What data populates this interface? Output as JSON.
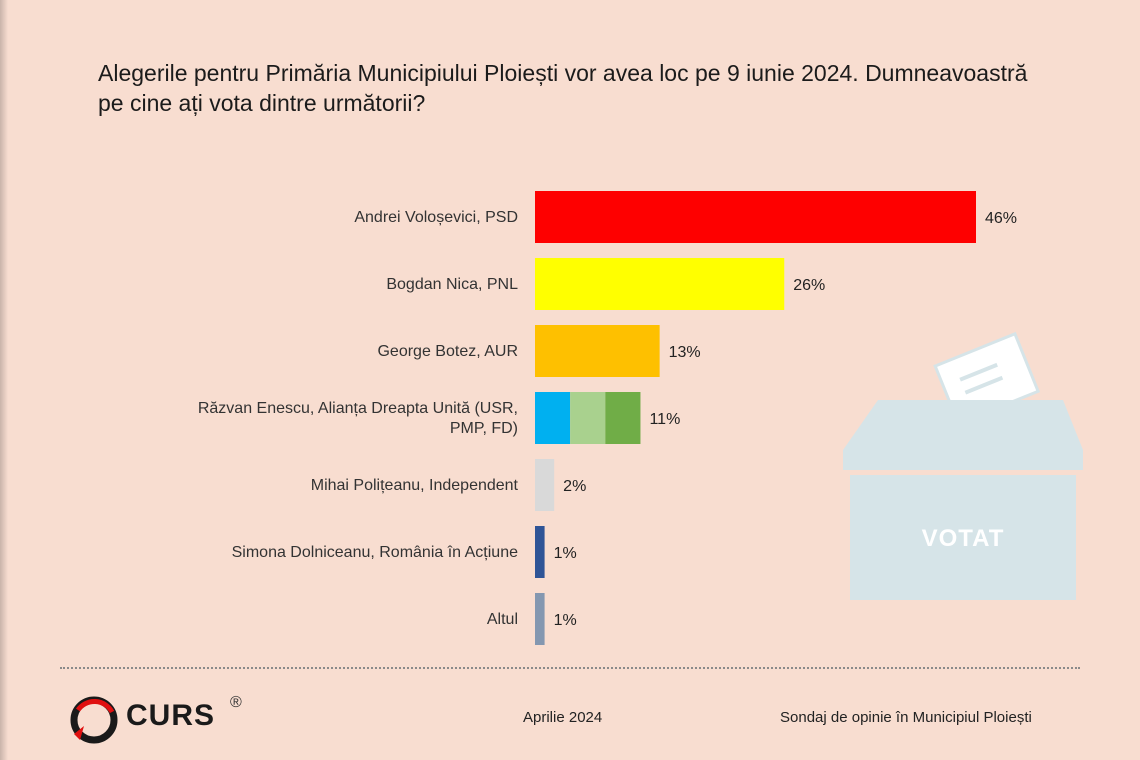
{
  "title": "Alegerile pentru Primăria Municipiului Ploiești vor avea loc pe 9 iunie 2024. Dumneavoastră pe cine ați vota dintre următorii?",
  "chart_data": {
    "type": "bar",
    "orientation": "horizontal",
    "xlim": [
      0,
      46
    ],
    "categories": [
      [
        "Andrei Voloșevici, PSD"
      ],
      [
        "Bogdan Nica, PNL"
      ],
      [
        "George Botez, AUR"
      ],
      [
        "Răzvan Enescu, Alianța Dreapta Unită (USR,",
        "PMP, FD)"
      ],
      [
        "Mihai Polițeanu, Independent"
      ],
      [
        "Simona Dolniceanu, România în Acțiune"
      ],
      [
        "Altul"
      ]
    ],
    "values": [
      46,
      26,
      13,
      11,
      2,
      1,
      1
    ],
    "value_labels": [
      "46%",
      "26%",
      "13%",
      "11%",
      "2%",
      "1%",
      "1%"
    ],
    "colors": [
      [
        "#fe0000"
      ],
      [
        "#ffff00"
      ],
      [
        "#fec000"
      ],
      [
        "#00b0f0",
        "#a9d18e",
        "#70ad47"
      ],
      [
        "#d9d9d9"
      ],
      [
        "#2f5496"
      ],
      [
        "#8497b0"
      ]
    ]
  },
  "illustration": {
    "icon": "ballot-box",
    "text": "VOTAT",
    "color": "#d6e4e8"
  },
  "footer": {
    "logo_text": "CURS",
    "logo_reg": "®",
    "date": "Aprilie 2024",
    "source": "Sondaj de opinie în Municipiul Ploiești"
  }
}
